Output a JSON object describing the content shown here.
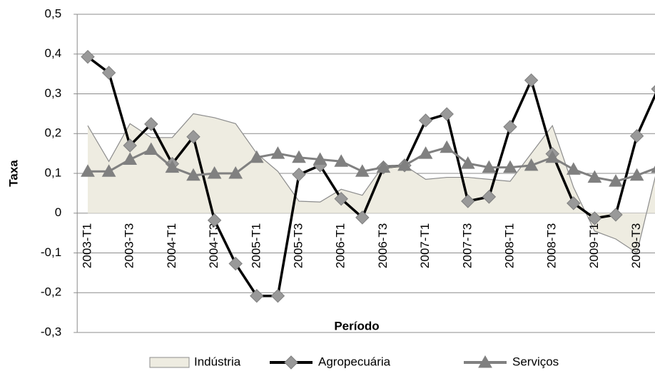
{
  "chart_data": {
    "type": "line",
    "x_label": "Período",
    "y_label": "Taxa",
    "categories": [
      "2003-T1",
      null,
      "2003-T3",
      null,
      "2004-T1",
      null,
      "2004-T3",
      null,
      "2005-T1",
      null,
      "2005-T3",
      null,
      "2006-T1",
      null,
      "2006-T3",
      null,
      "2007-T1",
      null,
      "2007-T3",
      null,
      "2008-T1",
      null,
      "2008-T3",
      null,
      "2009-T1",
      null,
      "2009-T3",
      null
    ],
    "series": [
      {
        "name": "Indústria",
        "kind": "area",
        "color": "#eeece1",
        "line_color": "#8c8c8c",
        "values": [
          0.22,
          0.13,
          0.225,
          0.19,
          0.19,
          0.25,
          0.24,
          0.225,
          0.15,
          0.105,
          0.03,
          0.028,
          0.06,
          0.045,
          0.12,
          0.12,
          0.085,
          0.09,
          0.09,
          0.085,
          0.08,
          0.15,
          0.22,
          0.065,
          -0.045,
          -0.065,
          -0.1,
          0.12
        ]
      },
      {
        "name": "Agropecuária",
        "kind": "line",
        "marker": "diamond",
        "color": "#000000",
        "marker_color": "#999999",
        "values": [
          0.393,
          0.353,
          0.17,
          0.224,
          0.124,
          0.192,
          -0.018,
          -0.127,
          -0.208,
          -0.208,
          0.097,
          0.12,
          0.036,
          -0.011,
          0.115,
          0.12,
          0.233,
          0.249,
          0.03,
          0.041,
          0.217,
          0.334,
          0.149,
          0.025,
          -0.013,
          -0.004,
          0.194,
          0.312
        ]
      },
      {
        "name": "Serviços",
        "kind": "line",
        "marker": "triangle",
        "color": "#808080",
        "marker_color": "#808080",
        "values": [
          0.105,
          0.105,
          0.135,
          0.16,
          0.115,
          0.095,
          0.1,
          0.1,
          0.14,
          0.15,
          0.14,
          0.135,
          0.13,
          0.105,
          0.115,
          0.12,
          0.15,
          0.165,
          0.125,
          0.115,
          0.115,
          0.12,
          0.14,
          0.11,
          0.09,
          0.08,
          0.095,
          0.115
        ]
      }
    ],
    "ylim": [
      -0.3,
      0.5
    ],
    "yticks": [
      {
        "value": -0.3,
        "label": "-0,3"
      },
      {
        "value": -0.2,
        "label": "-0,2"
      },
      {
        "value": -0.1,
        "label": "-0,1"
      },
      0,
      {
        "value": 0.1,
        "label": "0,1"
      },
      {
        "value": 0.2,
        "label": "0,2"
      },
      {
        "value": 0.3,
        "label": "0,3"
      },
      {
        "value": 0.4,
        "label": "0,4"
      },
      {
        "value": 0.5,
        "label": "0,5"
      }
    ],
    "grid": true,
    "legend": "bottom"
  }
}
